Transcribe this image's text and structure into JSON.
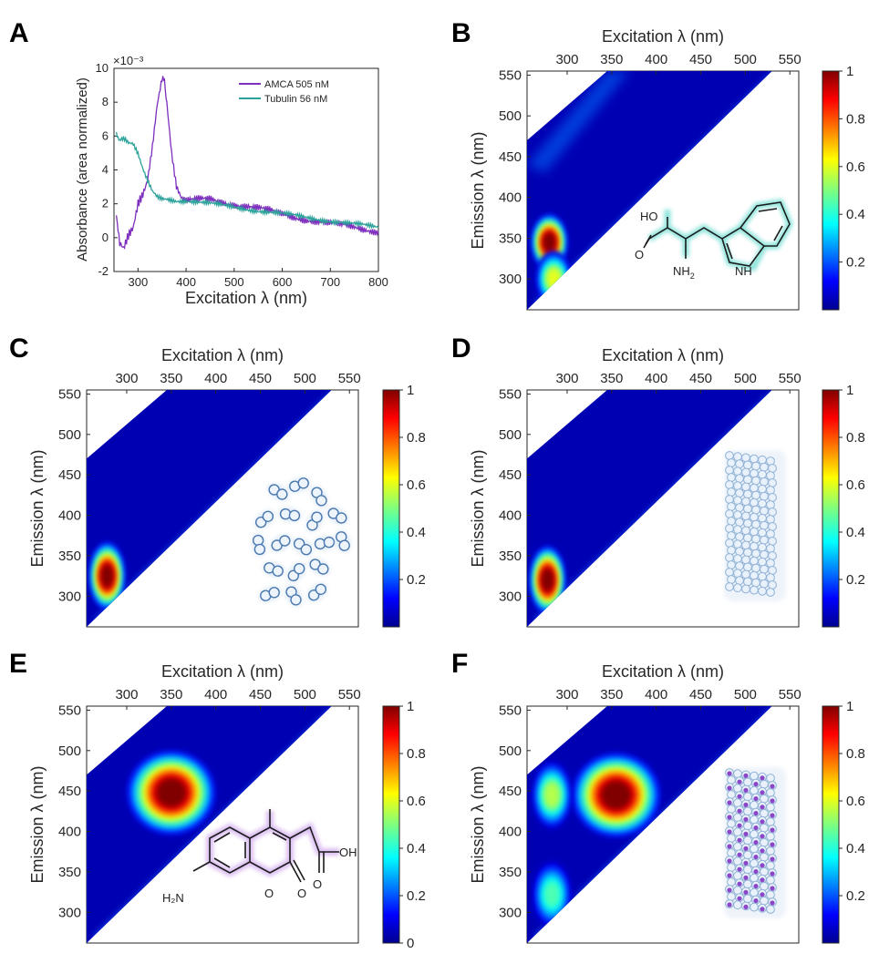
{
  "chart_data": [
    {
      "panel": "A",
      "type": "line",
      "xlabel": "Excitation λ (nm)",
      "ylabel": "Absorbance (area normalized)",
      "exponent_label": "×10⁻³",
      "xlim": [
        250,
        800
      ],
      "ylim": [
        -2,
        10
      ],
      "xticks": [
        "300",
        "400",
        "500",
        "600",
        "700",
        "800"
      ],
      "yticks": [
        "-2",
        "0",
        "2",
        "4",
        "6",
        "8",
        "10"
      ],
      "legend_position": "top-right",
      "series": [
        {
          "name": "AMCA 505 nM",
          "color": "#7E2FBE",
          "x": [
            255,
            262,
            270,
            280,
            290,
            300,
            310,
            320,
            330,
            340,
            350,
            355,
            360,
            370,
            380,
            390,
            400,
            420,
            450,
            500,
            550,
            600,
            650,
            700,
            750,
            800
          ],
          "y": [
            1.5,
            -0.5,
            -0.8,
            0.0,
            0.5,
            2.0,
            2.6,
            3.5,
            5.5,
            8.0,
            9.5,
            9.2,
            8.0,
            5.0,
            3.0,
            2.3,
            2.1,
            2.2,
            2.3,
            2.0,
            1.7,
            1.4,
            1.1,
            0.8,
            0.6,
            0.4
          ]
        },
        {
          "name": "Tubulin 56 nM",
          "color": "#2BA29A",
          "x": [
            255,
            262,
            270,
            280,
            290,
            300,
            310,
            320,
            330,
            340,
            350,
            360,
            380,
            400,
            450,
            500,
            550,
            600,
            650,
            700,
            750,
            800
          ],
          "y": [
            6.1,
            5.8,
            5.9,
            5.6,
            5.5,
            4.9,
            4.0,
            3.3,
            2.7,
            2.4,
            2.3,
            2.3,
            2.2,
            2.2,
            2.0,
            1.8,
            1.6,
            1.4,
            1.2,
            1.0,
            0.8,
            0.6
          ]
        }
      ]
    },
    {
      "panel": "B",
      "type": "heatmap",
      "xlabel": "Excitation λ (nm)",
      "ylabel": "Emission λ (nm)",
      "xticks": [
        "300",
        "350",
        "400",
        "450",
        "500",
        "550"
      ],
      "yticks": [
        "300",
        "350",
        "400",
        "450",
        "500",
        "550"
      ],
      "colorbar_ticks": [
        "0.2",
        "0.4",
        "0.6",
        "0.8",
        "1"
      ],
      "peaks": [
        {
          "ex": 280,
          "em": 345,
          "intensity": 1.0
        },
        {
          "ex": 285,
          "em": 300,
          "intensity": 0.6
        }
      ],
      "inset": "tryptophan structure"
    },
    {
      "panel": "C",
      "type": "heatmap",
      "xlabel": "Excitation λ (nm)",
      "ylabel": "Emission λ (nm)",
      "xticks": [
        "300",
        "350",
        "400",
        "450",
        "500",
        "550"
      ],
      "yticks": [
        "300",
        "350",
        "400",
        "450",
        "500",
        "550"
      ],
      "colorbar_ticks": [
        "0.2",
        "0.4",
        "0.6",
        "0.8",
        "1"
      ],
      "peaks": [
        {
          "ex": 278,
          "em": 325,
          "intensity": 1.0
        }
      ],
      "inset": "tubulin dimers"
    },
    {
      "panel": "D",
      "type": "heatmap",
      "xlabel": "Excitation λ (nm)",
      "ylabel": "Emission λ (nm)",
      "xticks": [
        "300",
        "350",
        "400",
        "450",
        "500",
        "550"
      ],
      "yticks": [
        "300",
        "350",
        "400",
        "450",
        "500",
        "550"
      ],
      "colorbar_ticks": [
        "0.2",
        "0.4",
        "0.6",
        "0.8",
        "1"
      ],
      "peaks": [
        {
          "ex": 278,
          "em": 320,
          "intensity": 1.0
        }
      ],
      "inset": "microtubule"
    },
    {
      "panel": "E",
      "type": "heatmap",
      "xlabel": "Excitation λ (nm)",
      "ylabel": "Emission λ (nm)",
      "xticks": [
        "300",
        "350",
        "400",
        "450",
        "500",
        "550"
      ],
      "yticks": [
        "300",
        "350",
        "400",
        "450",
        "500",
        "550"
      ],
      "colorbar_ticks": [
        "0",
        "0.2",
        "0.4",
        "0.6",
        "0.8",
        "1"
      ],
      "peaks": [
        {
          "ex": 350,
          "em": 448,
          "intensity": 1.0
        }
      ],
      "inset": "AMCA structure"
    },
    {
      "panel": "F",
      "type": "heatmap",
      "xlabel": "Excitation λ (nm)",
      "ylabel": "Emission λ (nm)",
      "xticks": [
        "300",
        "350",
        "400",
        "450",
        "500",
        "550"
      ],
      "yticks": [
        "300",
        "350",
        "400",
        "450",
        "500",
        "550"
      ],
      "colorbar_ticks": [
        "0.2",
        "0.4",
        "0.6",
        "0.8",
        "1"
      ],
      "peaks": [
        {
          "ex": 355,
          "em": 445,
          "intensity": 1.0
        },
        {
          "ex": 283,
          "em": 445,
          "intensity": 0.55
        },
        {
          "ex": 283,
          "em": 322,
          "intensity": 0.45
        }
      ],
      "inset": "AMCA-labeled microtubule"
    }
  ],
  "panel_labels": [
    "A",
    "B",
    "C",
    "D",
    "E",
    "F"
  ],
  "chem": {
    "ho": "HO",
    "o": "O",
    "nh2": "NH",
    "sub2": "2",
    "nh": "NH",
    "h2n": "H₂N",
    "oh": "OH"
  },
  "colormap": "jet"
}
